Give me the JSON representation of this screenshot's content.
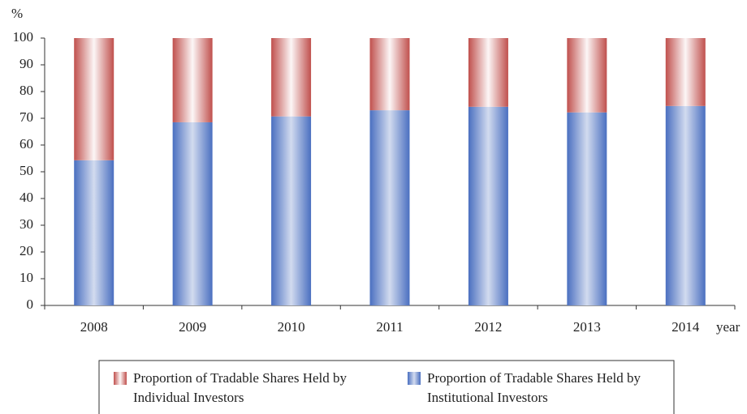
{
  "chart_data": {
    "type": "stacked_bar",
    "y_label": "%",
    "x_label": "year",
    "categories": [
      "2008",
      "2009",
      "2010",
      "2011",
      "2012",
      "2013",
      "2014"
    ],
    "series": [
      {
        "name": "Proportion of Tradable Shares Held by Individual Investors",
        "color": "#c0504d",
        "values": [
          45.7,
          31.5,
          29.3,
          27,
          25.7,
          27.8,
          25.4
        ]
      },
      {
        "name": "Proportion of Tradable Shares Held by Institutional Investors",
        "color": "#4a6fc0",
        "values": [
          54.3,
          68.5,
          70.7,
          73,
          74.3,
          72.2,
          74.6
        ]
      }
    ],
    "ylim": [
      0,
      100
    ],
    "yticks": [
      0,
      10,
      20,
      30,
      40,
      50,
      60,
      70,
      80,
      90,
      100
    ],
    "legend": "bottom"
  }
}
